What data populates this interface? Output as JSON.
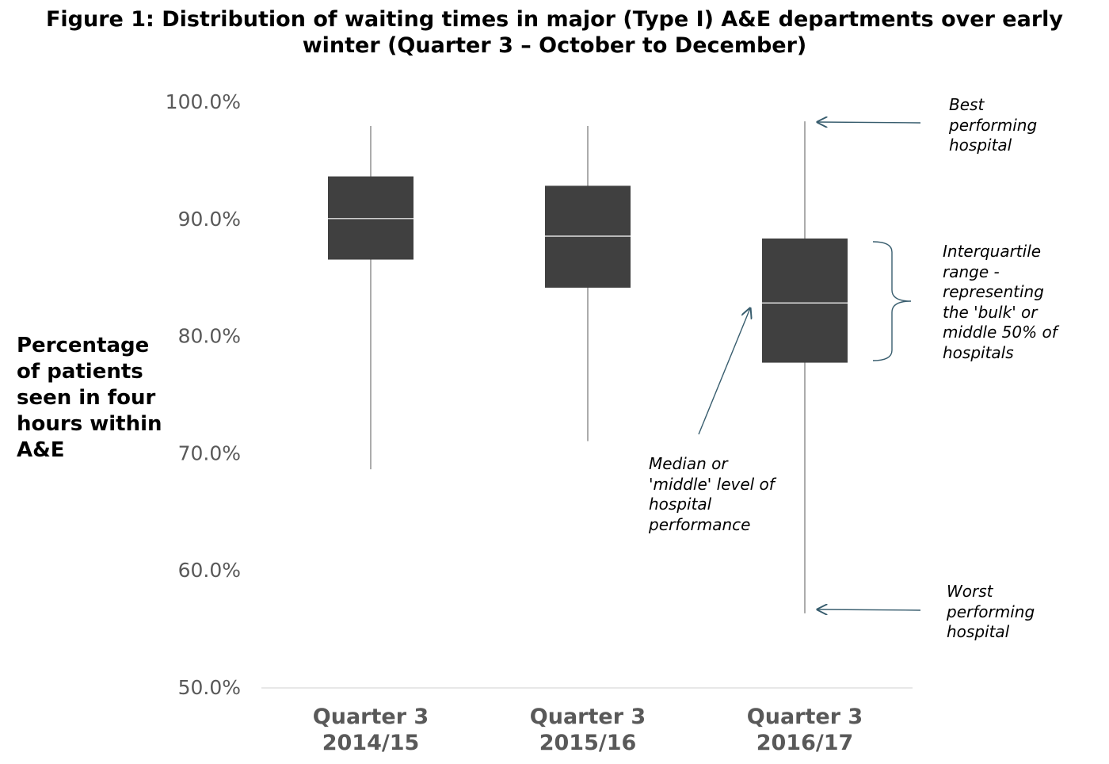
{
  "chart_data": {
    "type": "box",
    "title": "Figure 1: Distribution of waiting times in major (Type I) A&E departments over early winter (Quarter 3 – October to December)",
    "ylabel": "Percentage of patients seen in four hours within A&E",
    "ylim": [
      50,
      100
    ],
    "yticks": [
      "50.0%",
      "60.0%",
      "70.0%",
      "80.0%",
      "90.0%",
      "100.0%"
    ],
    "ytick_values": [
      50,
      60,
      70,
      80,
      90,
      100
    ],
    "grid": false,
    "categories": [
      [
        "Quarter 3",
        "2014/15"
      ],
      [
        "Quarter 3",
        "2015/16"
      ],
      [
        "Quarter 3",
        "2016/17"
      ]
    ],
    "boxes": [
      {
        "min": 68.6,
        "q1": 86.5,
        "median": 90.0,
        "q3": 93.6,
        "max": 97.9
      },
      {
        "min": 71.0,
        "q1": 84.1,
        "median": 88.5,
        "q3": 92.8,
        "max": 97.9
      },
      {
        "min": 56.3,
        "q1": 77.7,
        "median": 82.8,
        "q3": 88.3,
        "max": 98.3
      }
    ],
    "colors": {
      "box": "#404040",
      "median": "#ffffff",
      "whisker": "#7f7f7f",
      "annotation": "#385d6e",
      "tick": "#595959"
    },
    "annotations": {
      "best": "Best performing hospital",
      "iqr": "Interquartile range - representing the 'bulk' or middle 50% of hospitals",
      "median": "Median or 'middle' level of hospital performance",
      "worst": "Worst performing hospital"
    }
  }
}
